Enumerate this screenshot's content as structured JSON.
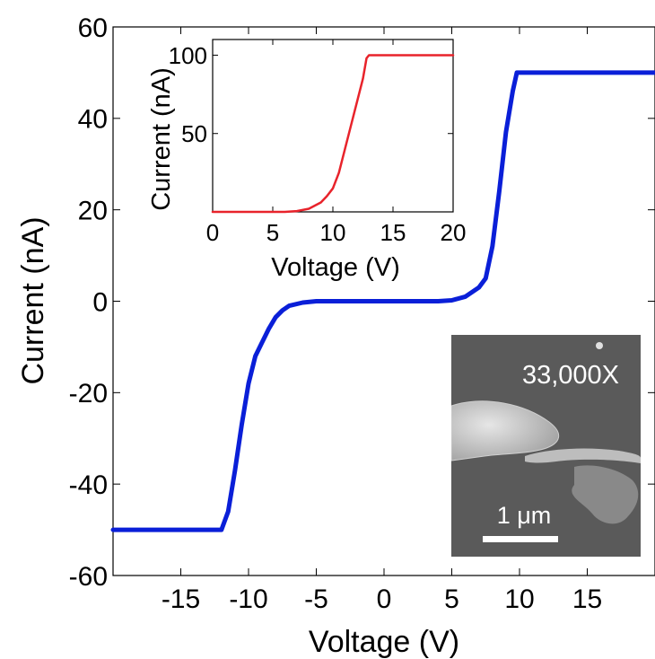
{
  "chart_data": [
    {
      "type": "line",
      "title": "",
      "xlabel": "Voltage (V)",
      "ylabel": "Current (nA)",
      "xlim": [
        -20,
        20
      ],
      "ylim": [
        -60,
        60
      ],
      "xticks": [
        -15,
        -10,
        -5,
        0,
        5,
        10,
        15
      ],
      "yticks": [
        -60,
        -40,
        -20,
        0,
        20,
        40,
        60
      ],
      "grid": false,
      "series": [
        {
          "color": "#0a1fd8",
          "x": [
            -20,
            -12,
            -11.5,
            -11,
            -10.5,
            -10,
            -9.5,
            -9,
            -8.5,
            -8,
            -7.5,
            -7,
            -6,
            -5,
            -3,
            0,
            2,
            4,
            5,
            6,
            7,
            7.5,
            8,
            8.5,
            9,
            9.5,
            9.8,
            10,
            20
          ],
          "y": [
            -50,
            -50,
            -46,
            -37,
            -27,
            -18,
            -12,
            -9,
            -6,
            -3.5,
            -2,
            -1,
            -0.3,
            0,
            0,
            0,
            0,
            0,
            0.2,
            1,
            3,
            5,
            12,
            24,
            37,
            46,
            50,
            50,
            50
          ]
        }
      ]
    },
    {
      "type": "line",
      "title": "",
      "xlabel": "Voltage (V)",
      "ylabel": "Current (nA)",
      "xlim": [
        0,
        20
      ],
      "ylim": [
        0,
        110
      ],
      "xticks": [
        0,
        5,
        10,
        15,
        20
      ],
      "yticks": [
        50,
        100
      ],
      "grid": false,
      "series": [
        {
          "color": "#e8232b",
          "x": [
            0,
            6,
            7,
            8,
            9,
            9.5,
            10,
            10.5,
            11,
            11.5,
            12,
            12.5,
            12.8,
            13,
            20
          ],
          "y": [
            0,
            0,
            0.5,
            2,
            6,
            10,
            15,
            25,
            40,
            55,
            70,
            85,
            98,
            100,
            100
          ]
        }
      ]
    }
  ],
  "sem_image": {
    "magnification_label": "33,000X",
    "scale_bar_label": "1 μm",
    "background_color": "#5a5a5a"
  }
}
